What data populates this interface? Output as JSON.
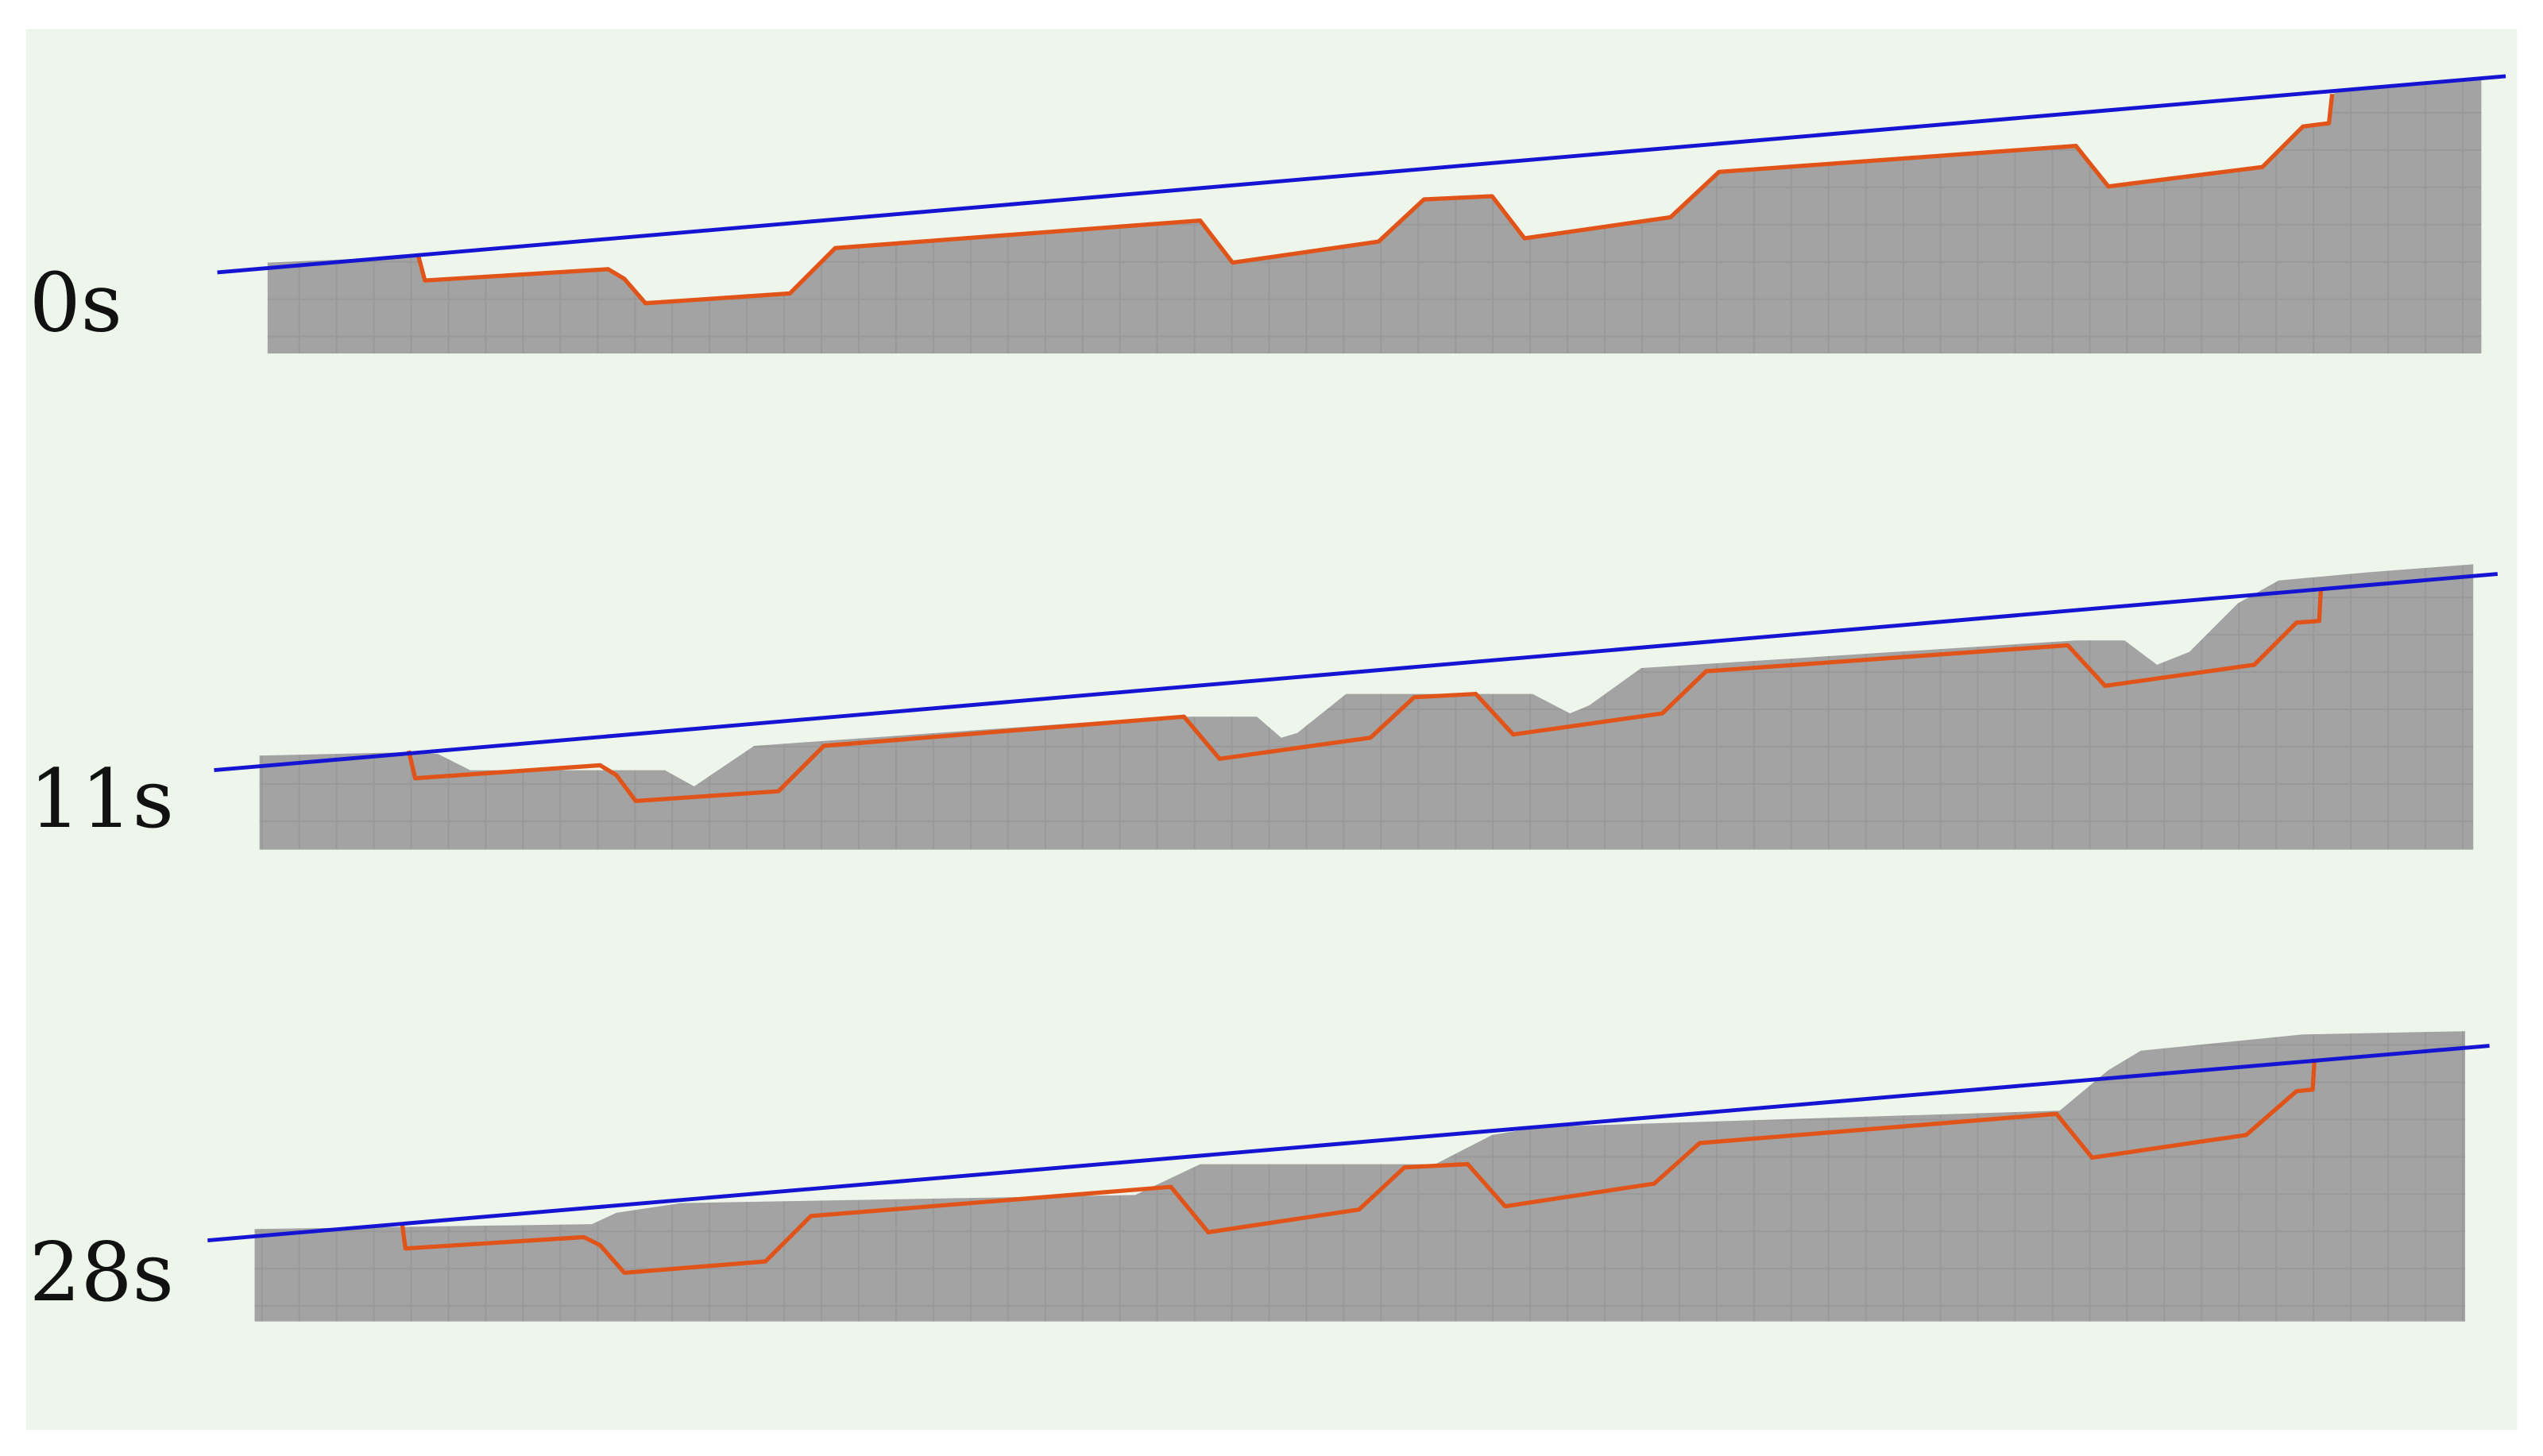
{
  "panels": [
    {
      "label": "0s"
    },
    {
      "label": "11s"
    },
    {
      "label": "28s"
    }
  ]
}
